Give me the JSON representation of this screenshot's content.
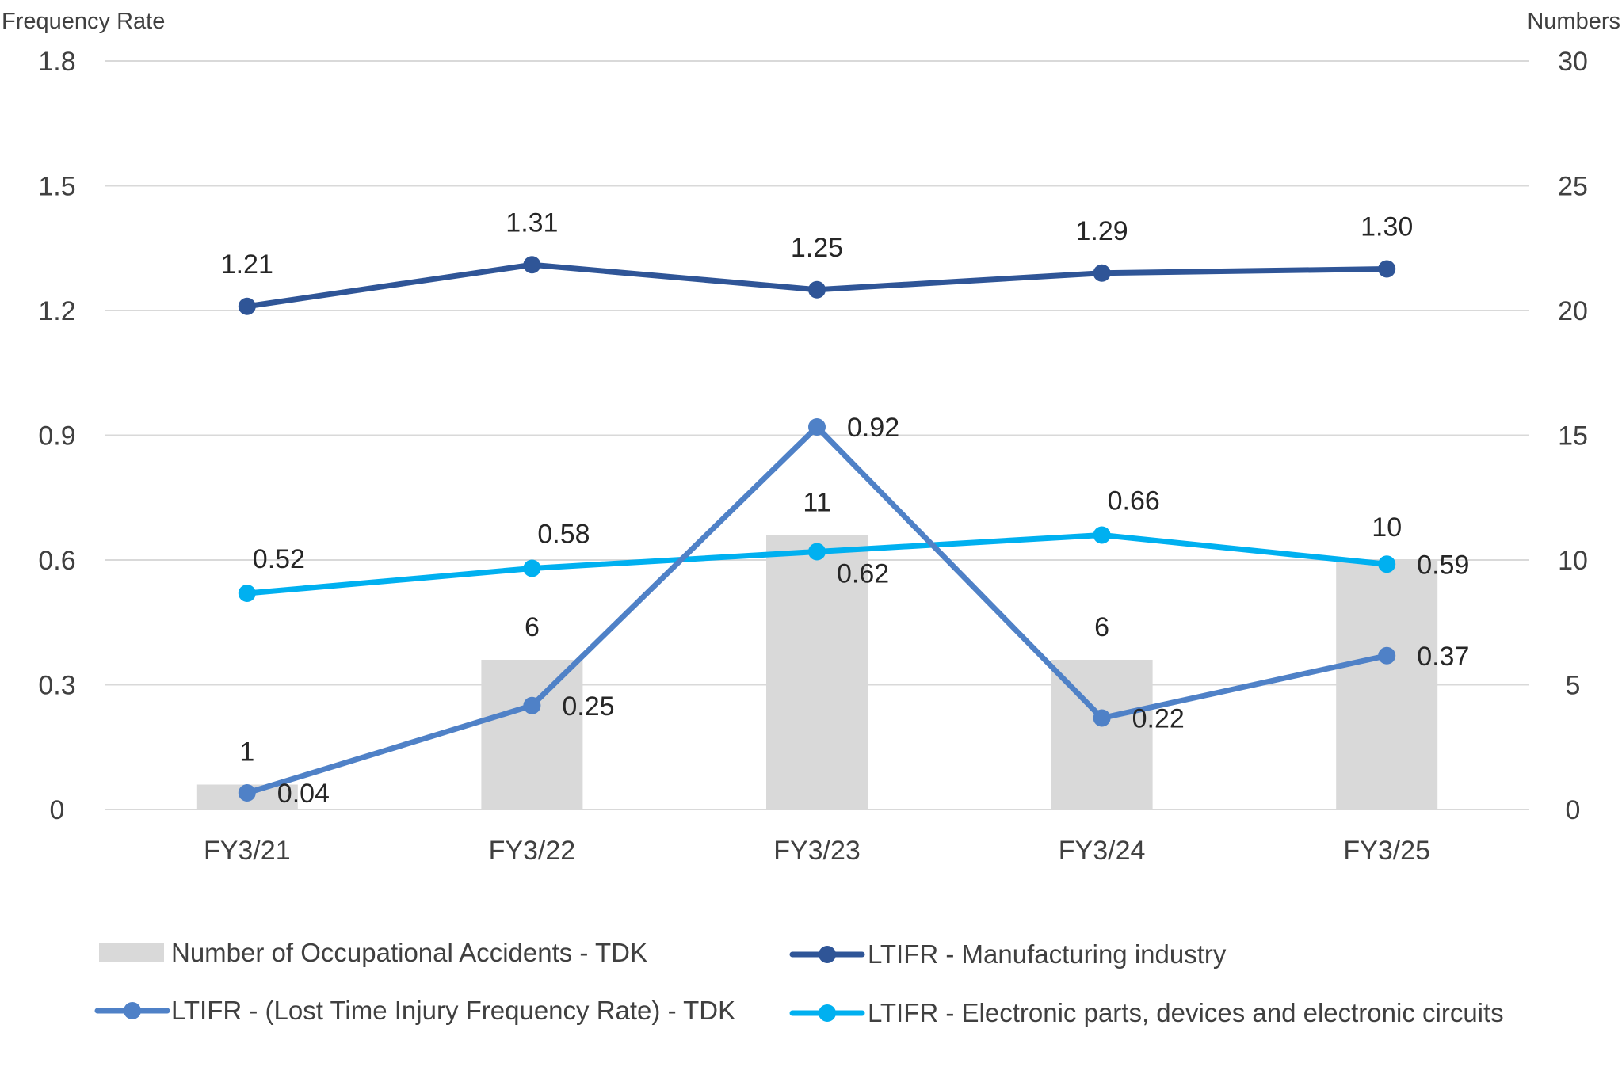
{
  "chart_data": {
    "type": "bar+line",
    "title": "",
    "y_left_label": "Frequency Rate",
    "y_right_label": "Numbers",
    "y_left_lim": [
      0,
      1.8
    ],
    "y_left_ticks": [
      "0",
      "0.3",
      "0.6",
      "0.9",
      "1.2",
      "1.5",
      "1.8"
    ],
    "y_left_tick_values": [
      0,
      0.3,
      0.6,
      0.9,
      1.2,
      1.5,
      1.8
    ],
    "y_right_lim": [
      0,
      30
    ],
    "y_right_ticks": [
      "0",
      "5",
      "10",
      "15",
      "20",
      "25",
      "30"
    ],
    "y_right_tick_values": [
      0,
      5,
      10,
      15,
      20,
      25,
      30
    ],
    "categories": [
      "FY3/21",
      "FY3/22",
      "FY3/23",
      "FY3/24",
      "FY3/25"
    ],
    "bars": {
      "name": "Number of Occupational Accidents - TDK",
      "axis": "right",
      "color": "#d9d9d9",
      "values": [
        1,
        6,
        11,
        6,
        10
      ],
      "labels": [
        "1",
        "6",
        "11",
        "6",
        "10"
      ]
    },
    "series": [
      {
        "name": "LTIFR - Manufacturing industry",
        "axis": "left",
        "color": "#2f5597",
        "values": [
          1.21,
          1.31,
          1.25,
          1.29,
          1.3
        ],
        "labels": [
          "1.21",
          "1.31",
          "1.25",
          "1.29",
          "1.30"
        ],
        "label_pos": [
          "above",
          "above",
          "above",
          "above",
          "above"
        ]
      },
      {
        "name": "LTIFR - Electronic parts, devices and electronic circuits",
        "axis": "left",
        "color": "#00b0f0",
        "values": [
          0.52,
          0.58,
          0.62,
          0.66,
          0.59
        ],
        "labels": [
          "0.52",
          "0.58",
          "0.62",
          "0.66",
          "0.59"
        ],
        "label_pos": [
          "above-right",
          "above-right",
          "below-right",
          "above-right",
          "right"
        ]
      },
      {
        "name": "LTIFR - (Lost Time Injury Frequency Rate) - TDK",
        "axis": "left",
        "color": "#4f81c7",
        "values": [
          0.04,
          0.25,
          0.92,
          0.22,
          0.37
        ],
        "labels": [
          "0.04",
          "0.25",
          "0.92",
          "0.22",
          "0.37"
        ],
        "label_pos": [
          "right",
          "right",
          "right",
          "right",
          "right"
        ]
      }
    ],
    "legend": [
      {
        "name": "Number of Occupational Accidents - TDK",
        "kind": "bar",
        "color": "#d9d9d9"
      },
      {
        "name": "LTIFR - Manufacturing industry",
        "kind": "line",
        "color": "#2f5597"
      },
      {
        "name": "LTIFR - (Lost Time Injury Frequency Rate) - TDK",
        "kind": "line",
        "color": "#4f81c7"
      },
      {
        "name": "LTIFR - Electronic parts, devices and electronic circuits",
        "kind": "line",
        "color": "#00b0f0"
      }
    ],
    "legend_position": "bottom",
    "grid": true
  }
}
